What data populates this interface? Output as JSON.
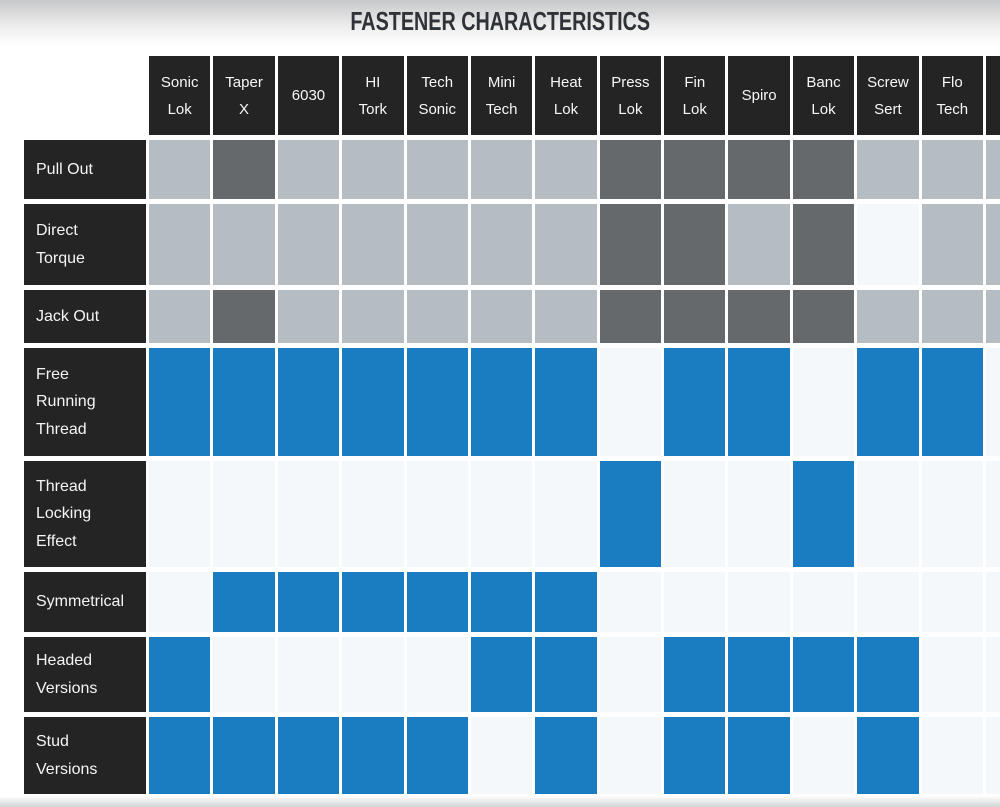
{
  "title": "FASTENER CHARACTERISTICS",
  "chart_data": {
    "type": "table",
    "title": "FASTENER CHARACTERISTICS",
    "columns": [
      "Sonic Lok",
      "Taper X",
      "6030",
      "HI Tork",
      "Tech Sonic",
      "Mini Tech",
      "Heat Lok",
      "Press Lok",
      "Fin Lok",
      "Spiro",
      "Banc Lok",
      "Screw Sert",
      "Flo Tech"
    ],
    "rows": [
      {
        "label": "Pull Out",
        "cells": [
          "light-gray",
          "dark-gray",
          "light-gray",
          "light-gray",
          "light-gray",
          "light-gray",
          "light-gray",
          "dark-gray",
          "dark-gray",
          "dark-gray",
          "dark-gray",
          "light-gray",
          "light-gray"
        ]
      },
      {
        "label": "Direct Torque",
        "cells": [
          "light-gray",
          "light-gray",
          "light-gray",
          "light-gray",
          "light-gray",
          "light-gray",
          "light-gray",
          "dark-gray",
          "dark-gray",
          "light-gray",
          "dark-gray",
          "none",
          "light-gray"
        ]
      },
      {
        "label": "Jack Out",
        "cells": [
          "light-gray",
          "dark-gray",
          "light-gray",
          "light-gray",
          "light-gray",
          "light-gray",
          "light-gray",
          "dark-gray",
          "dark-gray",
          "dark-gray",
          "dark-gray",
          "light-gray",
          "light-gray"
        ]
      },
      {
        "label": "Free Running Thread",
        "cells": [
          "blue",
          "blue",
          "blue",
          "blue",
          "blue",
          "blue",
          "blue",
          "none",
          "blue",
          "blue",
          "none",
          "blue",
          "blue"
        ]
      },
      {
        "label": "Thread Locking Effect",
        "cells": [
          "none",
          "none",
          "none",
          "none",
          "none",
          "none",
          "none",
          "blue",
          "none",
          "none",
          "blue",
          "none",
          "none"
        ]
      },
      {
        "label": "Symmetrical",
        "cells": [
          "none",
          "blue",
          "blue",
          "blue",
          "blue",
          "blue",
          "blue",
          "none",
          "none",
          "none",
          "none",
          "none",
          "none"
        ]
      },
      {
        "label": "Headed Versions",
        "cells": [
          "blue",
          "none",
          "none",
          "none",
          "none",
          "blue",
          "blue",
          "none",
          "blue",
          "blue",
          "blue",
          "blue",
          "none"
        ]
      },
      {
        "label": "Stud Versions",
        "cells": [
          "blue",
          "blue",
          "blue",
          "blue",
          "blue",
          "none",
          "blue",
          "none",
          "blue",
          "blue",
          "none",
          "blue",
          "none"
        ]
      }
    ],
    "cutoff_column": {
      "note": "partial 14th column clipped at right viewport edge, header black, no visible label",
      "cells": [
        "light-gray",
        "light-gray",
        "light-gray",
        "none",
        "none",
        "none",
        "none",
        "none"
      ]
    },
    "colors": {
      "blue": "#1a7cc1",
      "light-gray": "#b5bcc2",
      "dark-gray": "#65696c",
      "none": "#f4f8fa",
      "header": "#242424"
    }
  }
}
